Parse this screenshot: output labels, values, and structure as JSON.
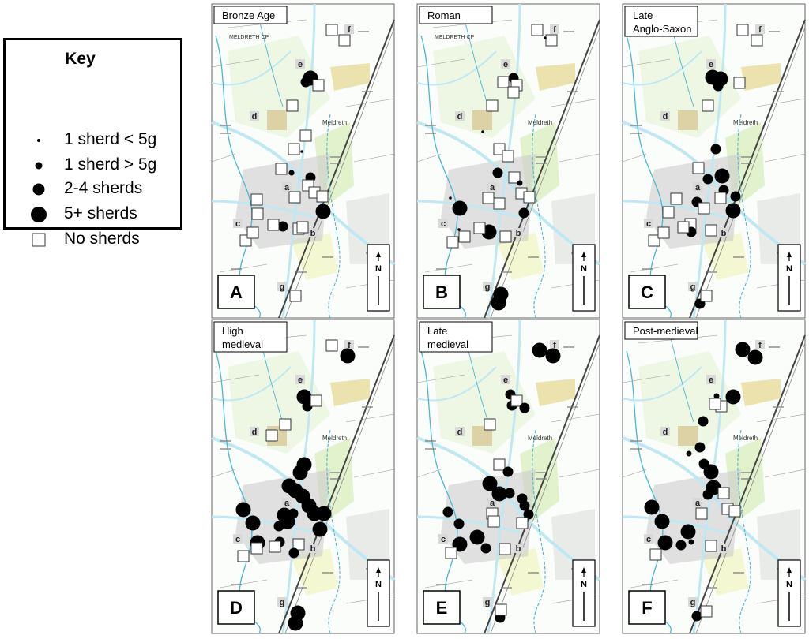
{
  "key": {
    "title": "Key",
    "items": [
      {
        "label": "1 sherd < 5g",
        "symbol": "dot-tiny"
      },
      {
        "label": "1 sherd > 5g",
        "symbol": "dot-small"
      },
      {
        "label": "2-4 sherds",
        "symbol": "dot-medium"
      },
      {
        "label": "5+ sherds",
        "symbol": "dot-large"
      },
      {
        "label": "No sherds",
        "symbol": "square"
      }
    ]
  },
  "site_labels": [
    "a",
    "b",
    "c",
    "d",
    "e",
    "f",
    "g"
  ],
  "map_text": {
    "parish": "MELDRETH CP",
    "village": "Meldreth",
    "north": "N"
  },
  "panels": [
    {
      "letter": "A",
      "title": "Bronze Age",
      "show_parish": true
    },
    {
      "letter": "B",
      "title": "Roman",
      "show_parish": true
    },
    {
      "letter": "C",
      "title": "Late Anglo-Saxon",
      "show_parish": false
    },
    {
      "letter": "D",
      "title": "High medieval",
      "show_parish": false
    },
    {
      "letter": "E",
      "title": "Late medieval",
      "show_parish": false
    },
    {
      "letter": "F",
      "title": "Post-medieval",
      "show_parish": false
    }
  ],
  "colors": {
    "road": "#bfe8f2",
    "river": "#4ab7d4",
    "field": "#e8f4d8",
    "housing": "#c8c8c8",
    "symbol": "#000000"
  }
}
